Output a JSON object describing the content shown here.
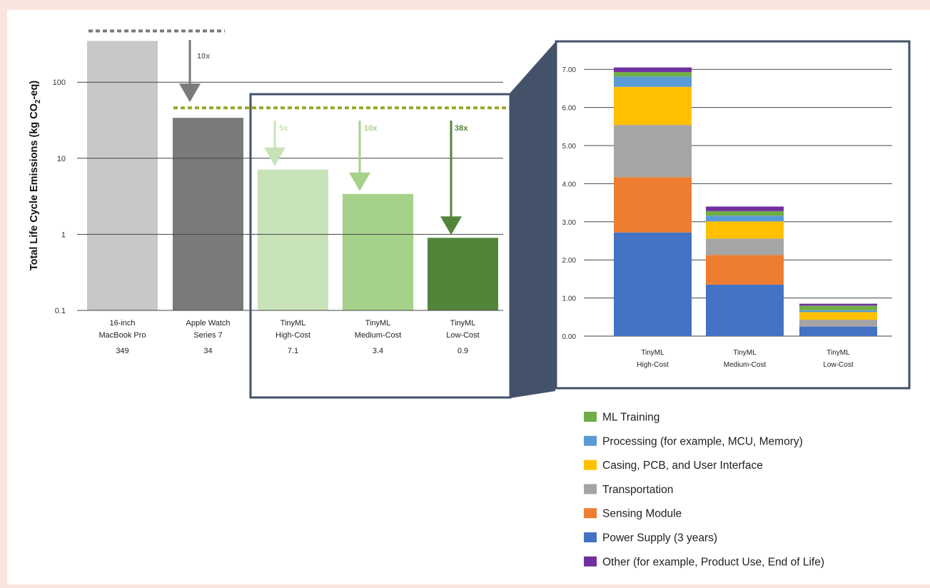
{
  "chart_data": [
    {
      "type": "bar",
      "scale": "log",
      "ylabel": "Total Life Cycle Emissions (kg CO2-eq)",
      "ylabel_parts": [
        "Total Life Cycle Emissions (kg CO",
        "2",
        "-eq)"
      ],
      "yticks": [
        {
          "value": 100,
          "label": "100"
        },
        {
          "value": 10,
          "label": "10"
        },
        {
          "value": 1,
          "label": "1"
        },
        {
          "value": 0.1,
          "label": "0.1"
        }
      ],
      "ylim": [
        0.1,
        400
      ],
      "categories": [
        {
          "line1": "16-inch",
          "line2": "MacBook Pro",
          "value_label": "349",
          "value": 349,
          "color": "#c8c8c8"
        },
        {
          "line1": "Apple Watch",
          "line2": "Series 7",
          "value_label": "34",
          "value": 34,
          "color": "#7a7a7a"
        },
        {
          "line1": "TinyML",
          "line2": "High-Cost",
          "value_label": "7.1",
          "value": 7.1,
          "color": "#c9e3b8"
        },
        {
          "line1": "TinyML",
          "line2": "Medium-Cost",
          "value_label": "3.4",
          "value": 3.4,
          "color": "#a6d18a"
        },
        {
          "line1": "TinyML",
          "line2": "Low-Cost",
          "value_label": "0.9",
          "value": 0.9,
          "color": "#52853a"
        }
      ],
      "reduction_annotations": [
        {
          "label": "10x",
          "from": 349,
          "to": 34,
          "color": "#7a7a7a"
        },
        {
          "label": "5x",
          "from": 34,
          "to": 7.1,
          "color": "#c9e3b8"
        },
        {
          "label": "10x",
          "from": 34,
          "to": 3.4,
          "color": "#a6d18a"
        },
        {
          "label": "38x",
          "from": 34,
          "to": 0.9,
          "color": "#52853a"
        }
      ],
      "reference_lines": [
        {
          "value": 349,
          "color": "#7a7a7a"
        },
        {
          "value": 34,
          "color": "#9aa82c"
        }
      ]
    },
    {
      "type": "bar",
      "stacked": true,
      "ylim": [
        0,
        7.0
      ],
      "yticks": [
        "0.00",
        "1.00",
        "2.00",
        "3.00",
        "4.00",
        "5.00",
        "6.00",
        "7.00"
      ],
      "categories": [
        {
          "line1": "TinyML",
          "line2": "High-Cost"
        },
        {
          "line1": "TinyML",
          "line2": "Medium-Cost"
        },
        {
          "line1": "TinyML",
          "line2": "Low-Cost"
        }
      ],
      "series": [
        {
          "name": "Power Supply (3 years)",
          "color": "#4472c4",
          "values": [
            2.72,
            1.35,
            0.25
          ]
        },
        {
          "name": "Sensing Module",
          "color": "#ed7d31",
          "values": [
            1.45,
            0.78,
            0.0
          ]
        },
        {
          "name": "Transportation",
          "color": "#a5a5a5",
          "values": [
            1.37,
            0.43,
            0.18
          ]
        },
        {
          "name": "Casing, PCB, and User Interface",
          "color": "#ffc000",
          "values": [
            1.0,
            0.45,
            0.2
          ]
        },
        {
          "name": "Processing (for example, MCU, Memory)",
          "color": "#5b9bd5",
          "values": [
            0.27,
            0.15,
            0.05
          ]
        },
        {
          "name": "ML Training",
          "color": "#70ad47",
          "values": [
            0.12,
            0.12,
            0.12
          ]
        },
        {
          "name": "Other (for example, Product Use, End of Life)",
          "color": "#7030a0",
          "values": [
            0.12,
            0.12,
            0.05
          ]
        }
      ],
      "legend_order": [
        5,
        4,
        3,
        2,
        1,
        0,
        6
      ],
      "legend_position": "bottom-right, outside plot"
    }
  ]
}
